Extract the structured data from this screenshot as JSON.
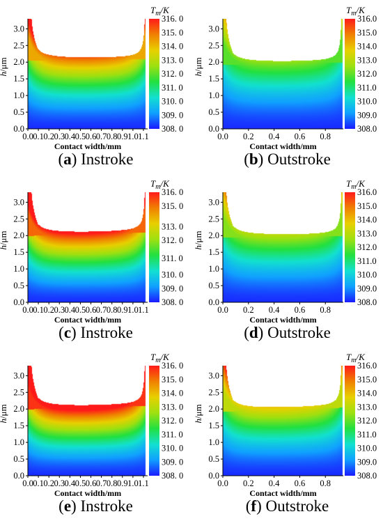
{
  "gradient": {
    "colors": [
      "#1a1aff",
      "#10a0ff",
      "#12e0d0",
      "#22e040",
      "#9ee010",
      "#e8d000",
      "#f08000",
      "#ff1a1a"
    ]
  },
  "chart_data": [
    {
      "id": "a",
      "type": "heatmap",
      "letter": "a",
      "caption": "Instroke",
      "xlabel": "Contact width/mm",
      "ylabel": "h/μm",
      "colorbar_title": "Tm/K",
      "xlim": [
        0,
        1.14
      ],
      "ylim": [
        0,
        3.3
      ],
      "xticks": [
        "0.0",
        "0.1",
        "0.2",
        "0.3",
        "0.4",
        "0.5",
        "0.6",
        "0.7",
        "0.8",
        "0.9",
        "1.0",
        "1.1"
      ],
      "xtick_values": [
        0.0,
        0.1,
        0.2,
        0.3,
        0.4,
        0.5,
        0.6,
        0.7,
        0.8,
        0.9,
        1.0,
        1.1
      ],
      "yticks": [
        "0.0",
        "0.5",
        "1.0",
        "1.5",
        "2.0",
        "2.5",
        "3.0"
      ],
      "ytick_values": [
        0.0,
        0.5,
        1.0,
        1.5,
        2.0,
        2.5,
        3.0
      ],
      "cbar_ticks": [
        "316. 0",
        "315. 0",
        "314. 0",
        "313. 0",
        "312. 0",
        "311. 0",
        "310. 0",
        "309. 0",
        "308. 0"
      ],
      "cbar_range": [
        308,
        316
      ],
      "profile": {
        "edge_x": [
          0.0,
          1.12
        ],
        "edge_h": 2.4,
        "film_h": 2.05,
        "film_h_right": 2.1
      },
      "peak_level": 0.85
    },
    {
      "id": "b",
      "type": "heatmap",
      "letter": "b",
      "caption": "Outstroke",
      "xlabel": "Contact width/mm",
      "ylabel": "h/μm",
      "colorbar_title": "Tm/K",
      "xlim": [
        0,
        0.94
      ],
      "ylim": [
        0,
        3.3
      ],
      "xticks": [
        "0.0",
        "0.2",
        "0.4",
        "0.6",
        "0.8"
      ],
      "xtick_values": [
        0.0,
        0.2,
        0.4,
        0.6,
        0.8
      ],
      "yticks": [
        "0.0",
        "0.5",
        "1.0",
        "1.5",
        "2.0",
        "2.5",
        "3.0"
      ],
      "ytick_values": [
        0.0,
        0.5,
        1.0,
        1.5,
        2.0,
        2.5,
        3.0
      ],
      "cbar_ticks": [
        "316.0",
        "315.0",
        "314.0",
        "313.0",
        "312.0",
        "311.0",
        "310.0",
        "309.0",
        "308.0"
      ],
      "cbar_range": [
        308,
        316
      ],
      "profile": {
        "edge_x": [
          0.0,
          0.93
        ],
        "edge_h": 2.3,
        "film_h": 1.93,
        "film_h_right": 2.0
      },
      "peak_level": 0.52
    },
    {
      "id": "c",
      "type": "heatmap",
      "letter": "c",
      "caption": "Instroke",
      "xlabel": "Contact width/mm",
      "ylabel": "h/μm",
      "colorbar_title": "Tm/K",
      "xlim": [
        0,
        1.14
      ],
      "ylim": [
        0,
        3.3
      ],
      "xticks": [
        "0.0",
        "0.1",
        "0.2",
        "0.3",
        "0.4",
        "0.5",
        "0.6",
        "0.7",
        "0.8",
        "0.9",
        "1.0",
        "1.1"
      ],
      "xtick_values": [
        0.0,
        0.1,
        0.2,
        0.3,
        0.4,
        0.5,
        0.6,
        0.7,
        0.8,
        0.9,
        1.0,
        1.1
      ],
      "yticks": [
        "0.0",
        "0.5",
        "1.0",
        "1.5",
        "2.0",
        "2.5",
        "3.0"
      ],
      "ytick_values": [
        0.0,
        0.5,
        1.0,
        1.5,
        2.0,
        2.5,
        3.0
      ],
      "cbar_ticks": [
        "316. 0",
        "315. 0",
        "313. 0",
        "312. 0",
        "311. 0",
        "310. 0",
        "309. 0",
        "308. 0"
      ],
      "cbar_tick_values": [
        316,
        315,
        313.5,
        312.5,
        311.2,
        310,
        309,
        308
      ],
      "cbar_range": [
        308,
        316
      ],
      "profile": {
        "edge_x": [
          0.0,
          1.12
        ],
        "edge_h": 2.4,
        "film_h": 2.0,
        "film_h_right": 2.1
      },
      "peak_level": 0.97
    },
    {
      "id": "d",
      "type": "heatmap",
      "letter": "d",
      "caption": "Outstroke",
      "xlabel": "Contact width/mm",
      "ylabel": "h/μm",
      "colorbar_title": "Tm/K",
      "xlim": [
        0,
        0.94
      ],
      "ylim": [
        0,
        3.3
      ],
      "xticks": [
        "0.0",
        "0.2",
        "0.4",
        "0.6",
        "0.8"
      ],
      "xtick_values": [
        0.0,
        0.2,
        0.4,
        0.6,
        0.8
      ],
      "yticks": [
        "0.0",
        "0.5",
        "1.0",
        "1.5",
        "2.0",
        "2.5",
        "3.0"
      ],
      "ytick_values": [
        0.0,
        0.5,
        1.0,
        1.5,
        2.0,
        2.5,
        3.0
      ],
      "cbar_ticks": [
        "316.0",
        "315.0",
        "314.0",
        "313.0",
        "312.0",
        "311.0",
        "310.0",
        "309.0",
        "308.0"
      ],
      "cbar_range": [
        308,
        316
      ],
      "profile": {
        "edge_x": [
          0.0,
          0.93
        ],
        "edge_h": 2.3,
        "film_h": 1.95,
        "film_h_right": 2.0
      },
      "peak_level": 0.58
    },
    {
      "id": "e",
      "type": "heatmap",
      "letter": "e",
      "caption": "Instroke",
      "xlabel": "Contact width/mm",
      "ylabel": "h/μm",
      "colorbar_title": "Tm/K",
      "xlim": [
        0,
        1.14
      ],
      "ylim": [
        0,
        3.3
      ],
      "xticks": [
        "0.0",
        "0.1",
        "0.2",
        "0.3",
        "0.4",
        "0.5",
        "0.6",
        "0.7",
        "0.8",
        "0.9",
        "1.0",
        "1.1"
      ],
      "xtick_values": [
        0.0,
        0.1,
        0.2,
        0.3,
        0.4,
        0.5,
        0.6,
        0.7,
        0.8,
        0.9,
        1.0,
        1.1
      ],
      "yticks": [
        "0.0",
        "0.5",
        "1.0",
        "1.5",
        "2.0",
        "2.5",
        "3.0"
      ],
      "ytick_values": [
        0.0,
        0.5,
        1.0,
        1.5,
        2.0,
        2.5,
        3.0
      ],
      "cbar_ticks": [
        "316. 0",
        "315. 0",
        "314. 0",
        "313. 0",
        "312. 0",
        "311. 0",
        "310. 0",
        "309. 0",
        "308. 0"
      ],
      "cbar_range": [
        308,
        316
      ],
      "profile": {
        "edge_x": [
          0.0,
          1.12
        ],
        "edge_h": 2.4,
        "film_h": 2.0,
        "film_h_right": 2.1
      },
      "peak_level": 1.05
    },
    {
      "id": "f",
      "type": "heatmap",
      "letter": "f",
      "caption": "Outstroke",
      "xlabel": "Contact width/mm",
      "ylabel": "h/μm",
      "colorbar_title": "Tm/K",
      "xlim": [
        0,
        0.94
      ],
      "ylim": [
        0,
        3.3
      ],
      "xticks": [
        "0.0",
        "0.2",
        "0.4",
        "0.6",
        "0.8"
      ],
      "xtick_values": [
        0.0,
        0.2,
        0.4,
        0.6,
        0.8
      ],
      "yticks": [
        "0.0",
        "0.5",
        "1.0",
        "1.5",
        "2.0",
        "2.5",
        "3.0"
      ],
      "ytick_values": [
        0.0,
        0.5,
        1.0,
        1.5,
        2.0,
        2.5,
        3.0
      ],
      "cbar_ticks": [
        "316.0",
        "315.0",
        "314.0",
        "313.0",
        "312.0",
        "311.0",
        "310.0",
        "309.0",
        "308.0"
      ],
      "cbar_range": [
        308,
        316
      ],
      "profile": {
        "edge_x": [
          0.0,
          0.93
        ],
        "edge_h": 2.3,
        "film_h": 1.93,
        "film_h_right": 2.05
      },
      "peak_level": 0.68
    }
  ]
}
